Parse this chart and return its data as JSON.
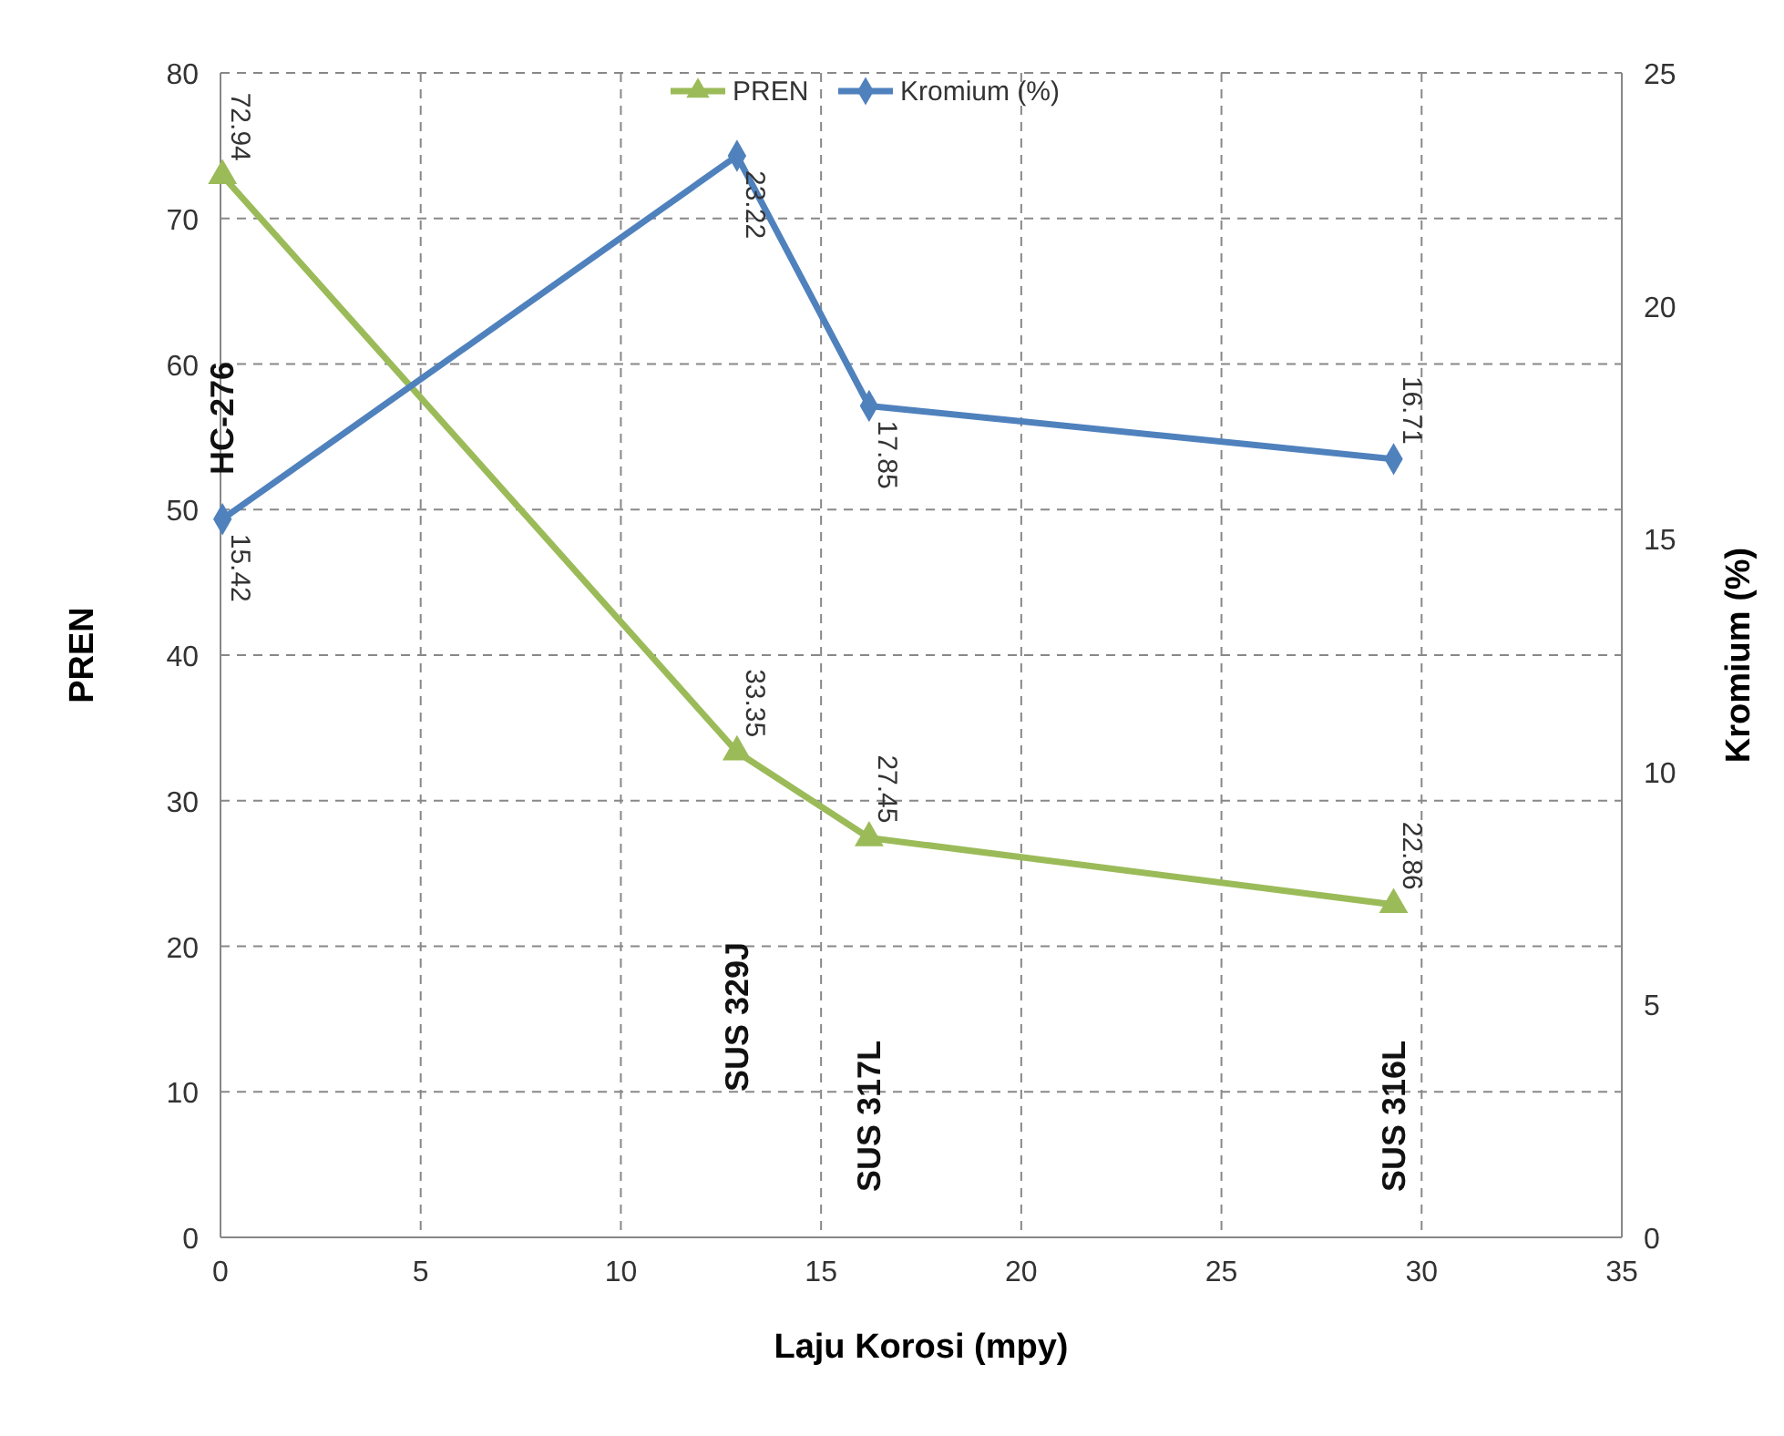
{
  "chart_data": {
    "type": "line",
    "xlabel": "Laju Korosi (mpy)",
    "ylabel": "PREN",
    "y2label": "Kromium (%)",
    "xlim": [
      0,
      35
    ],
    "xticks": [
      0,
      5,
      10,
      15,
      20,
      25,
      30,
      35
    ],
    "ylim": [
      0,
      80
    ],
    "yticks": [
      0,
      10,
      20,
      30,
      40,
      50,
      60,
      70,
      80
    ],
    "y2lim": [
      0,
      25
    ],
    "y2ticks": [
      0,
      5,
      10,
      15,
      20,
      25
    ],
    "grid": true,
    "legend": "top",
    "data_labels": true,
    "line_style": "solid",
    "series": [
      {
        "name": "PREN",
        "color": "#9bbb59",
        "marker": "triangle",
        "x": [
          0.05,
          12.9,
          16.2,
          29.3
        ],
        "values": [
          72.94,
          33.35,
          27.45,
          22.86
        ]
      },
      {
        "name": "Kromium (%)",
        "color": "#4f81bd",
        "marker": "diamond",
        "axis": "y2",
        "x": [
          0.05,
          12.9,
          16.2,
          29.3
        ],
        "values": [
          15.42,
          23.22,
          17.85,
          16.71
        ]
      }
    ],
    "annotations": [
      "HC-276",
      "SUS 329J",
      "SUS 317L",
      "SUS 316L"
    ]
  }
}
